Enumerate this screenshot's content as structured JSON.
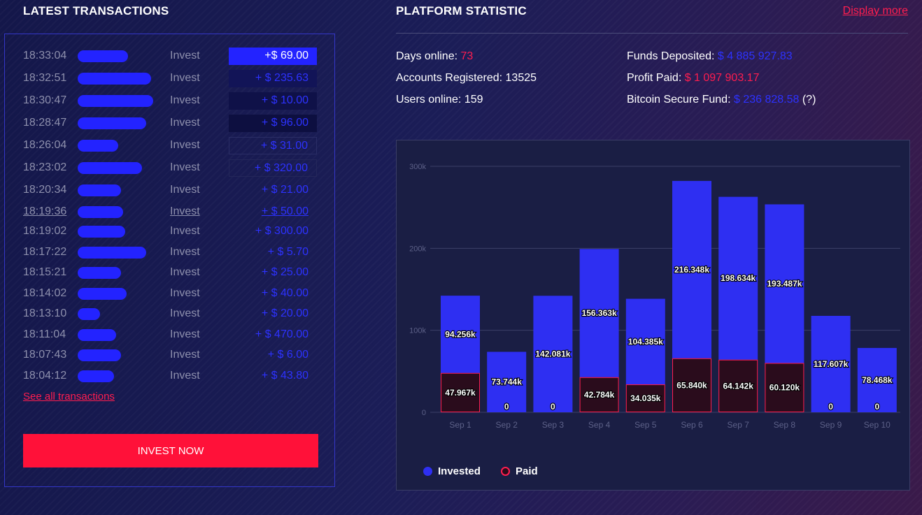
{
  "transactions": {
    "title": "LATEST TRANSACTIONS",
    "rows": [
      {
        "time": "18:33:04",
        "type": "Invest",
        "amount": "+$ 69.00"
      },
      {
        "time": "18:32:51",
        "type": "Invest",
        "amount": "+ $ 235.63"
      },
      {
        "time": "18:30:47",
        "type": "Invest",
        "amount": "+ $ 10.00"
      },
      {
        "time": "18:28:47",
        "type": "Invest",
        "amount": "+ $ 96.00"
      },
      {
        "time": "18:26:04",
        "type": "Invest",
        "amount": "+ $ 31.00"
      },
      {
        "time": "18:23:02",
        "type": "Invest",
        "amount": "+ $ 320.00"
      },
      {
        "time": "18:20:34",
        "type": "Invest",
        "amount": "+ $ 21.00"
      },
      {
        "time": "18:19:36",
        "type": "Invest",
        "amount": "+ $ 50.00"
      },
      {
        "time": "18:19:02",
        "type": "Invest",
        "amount": "+ $ 300.00"
      },
      {
        "time": "18:17:22",
        "type": "Invest",
        "amount": "+ $ 5.70"
      },
      {
        "time": "18:15:21",
        "type": "Invest",
        "amount": "+ $ 25.00"
      },
      {
        "time": "18:14:02",
        "type": "Invest",
        "amount": "+ $ 40.00"
      },
      {
        "time": "18:13:10",
        "type": "Invest",
        "amount": "+ $ 20.00"
      },
      {
        "time": "18:11:04",
        "type": "Invest",
        "amount": "+ $ 470.00"
      },
      {
        "time": "18:07:43",
        "type": "Invest",
        "amount": "+ $ 6.00"
      },
      {
        "time": "18:04:12",
        "type": "Invest",
        "amount": "+ $ 43.80"
      }
    ],
    "see_all_label": "See all transactions",
    "invest_button_label": "INVEST NOW"
  },
  "platform": {
    "title": "PLATFORM STATISTIC",
    "display_more_label": "Display more",
    "days_online_label": "Days online: ",
    "days_online_value": "73",
    "accounts_label": "Accounts Registered: 13525",
    "users_online_label": "Users online: 159",
    "funds_label": "Funds Deposited: ",
    "funds_value": "$ 4 885 927.83",
    "profit_label": "Profit Paid: ",
    "profit_value": "$ 1 097 903.17",
    "bitcoin_label": "Bitcoin Secure Fund: ",
    "bitcoin_value": "$ 236 828.58",
    "bitcoin_suffix": " (?)"
  },
  "colors": {
    "accent_red": "#ff1d4f",
    "accent_blue": "#2d32ff",
    "bar_invested": "#2e2ff2",
    "bar_paid": "#2a0c1c",
    "bar_paid_border": "#ff1d4f"
  },
  "chart_data": {
    "type": "bar",
    "categories": [
      "Sep 1",
      "Sep 2",
      "Sep 3",
      "Sep 4",
      "Sep 5",
      "Sep 6",
      "Sep 7",
      "Sep 8",
      "Sep 9",
      "Sep 10"
    ],
    "series": [
      {
        "name": "Invested",
        "values": [
          94.256,
          73.744,
          142.081,
          156.363,
          104.385,
          216.348,
          198.634,
          193.487,
          117.607,
          78.468
        ],
        "labels": [
          "94.256k",
          "73.744k",
          "142.081k",
          "156.363k",
          "104.385k",
          "216.348k",
          "198.634k",
          "193.487k",
          "117.607k",
          "78.468k"
        ]
      },
      {
        "name": "Paid",
        "values": [
          47.967,
          0,
          0,
          42.784,
          34.035,
          65.84,
          64.142,
          60.12,
          0,
          0
        ],
        "labels": [
          "47.967k",
          "0",
          "0",
          "42.784k",
          "34.035k",
          "65.840k",
          "64.142k",
          "60.120k",
          "0",
          "0"
        ]
      }
    ],
    "stacked": true,
    "yticks": [
      "0",
      "100k",
      "200k",
      "300k"
    ],
    "ylim": [
      0,
      300
    ],
    "grid": true,
    "legend": "bottom-left"
  }
}
